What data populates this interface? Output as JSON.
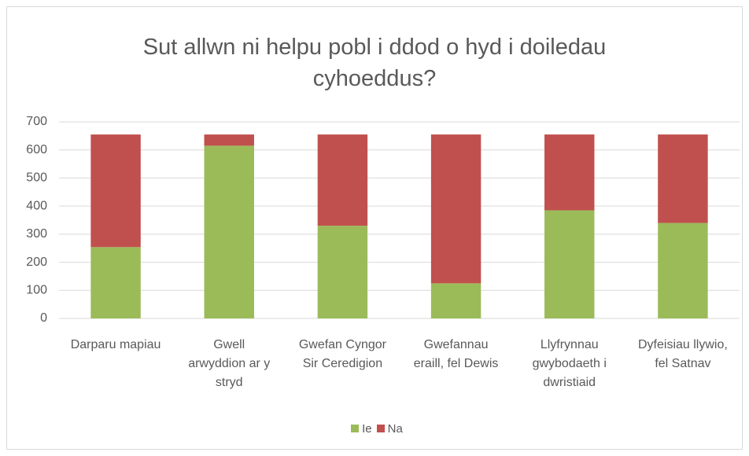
{
  "chart_data": {
    "type": "stacked_bar",
    "title": "Sut allwn ni helpu pobl i ddod o hyd i doiledau cyhoeddus?",
    "categories": [
      "Darparu mapiau",
      "Gwell arwyddion ar y stryd",
      "Gwefan Cyngor Sir Ceredigion",
      "Gwefannau eraill, fel Dewis",
      "Llyfrynnau gwybodaeth i dwristiaid",
      "Dyfeisiau llywio, fel Satnav"
    ],
    "series": [
      {
        "name": "Ie",
        "color": "#9bbb59",
        "values": [
          254,
          615,
          330,
          125,
          385,
          340
        ]
      },
      {
        "name": "Na",
        "color": "#c0504d",
        "values": [
          401,
          40,
          325,
          530,
          270,
          315
        ]
      }
    ],
    "ylim": [
      0,
      700
    ],
    "yticks": [
      0,
      100,
      200,
      300,
      400,
      500,
      600,
      700
    ],
    "grid": true,
    "legend": "bottom"
  }
}
